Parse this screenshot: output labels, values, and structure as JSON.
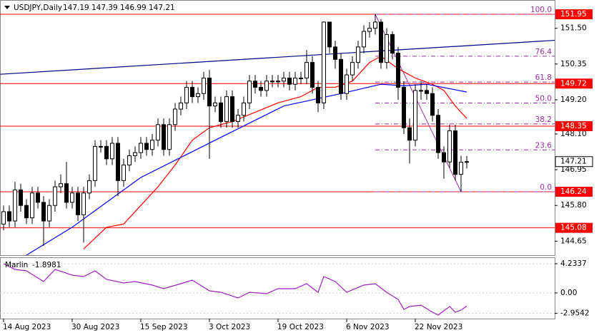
{
  "chart_data": [
    {
      "type": "candlestick",
      "symbol": "USDJPY,Daily",
      "categories": [
        "14 Aug 2023",
        null,
        null,
        null,
        null,
        null,
        null,
        null,
        null,
        null,
        null,
        null,
        "30 Aug 2023",
        null,
        null,
        null,
        null,
        null,
        null,
        null,
        null,
        null,
        null,
        null,
        "15 Sep 2023",
        null,
        null,
        null,
        null,
        null,
        null,
        null,
        null,
        null,
        null,
        null,
        "3 Oct 2023",
        null,
        null,
        null,
        null,
        null,
        null,
        null,
        null,
        null,
        null,
        null,
        "19 Oct 2023",
        null,
        null,
        null,
        null,
        null,
        null,
        null,
        null,
        null,
        null,
        null,
        "6 Nov 2023",
        null,
        null,
        null,
        null,
        null,
        null,
        null,
        null,
        null,
        null,
        null,
        "22 Nov 2023",
        null,
        null,
        null,
        null,
        null,
        null,
        null,
        null,
        null
      ],
      "open": [
        145.2,
        145.6,
        145.3,
        146.3,
        145.8,
        145.4,
        146.2,
        145.9,
        145.3,
        145.8,
        146.4,
        146.5,
        145.9,
        146.2,
        145.5,
        146.2,
        146.6,
        147.7,
        147.7,
        147.3,
        147.8,
        146.6,
        147.1,
        147.4,
        147.5,
        147.8,
        147.6,
        147.9,
        148.4,
        147.6,
        148.4,
        148.9,
        149.1,
        149.6,
        149.3,
        149.4,
        149.9,
        149.0,
        149.1,
        148.5,
        149.3,
        148.5,
        148.7,
        149.1,
        149.8,
        149.6,
        149.5,
        149.8,
        149.8,
        149.8,
        149.9,
        149.7,
        149.9,
        149.9,
        150.4,
        149.6,
        149.1,
        151.7,
        150.9,
        150.5,
        149.4,
        150.0,
        150.4,
        150.9,
        151.4,
        151.5,
        151.7,
        150.4,
        151.3,
        150.7,
        149.6,
        148.3,
        147.9,
        149.5,
        149.5,
        149.4,
        148.7,
        147.5,
        147.2,
        148.2,
        146.8,
        147.19
      ],
      "high": [
        145.8,
        145.8,
        146.56,
        146.5,
        146.0,
        146.4,
        146.4,
        146.1,
        146.0,
        146.6,
        146.8,
        147.2,
        146.4,
        146.4,
        146.4,
        146.8,
        147.9,
        147.9,
        147.9,
        148.0,
        148.0,
        147.3,
        147.6,
        147.7,
        148.0,
        148.0,
        148.1,
        148.6,
        148.6,
        148.6,
        149.1,
        149.3,
        149.8,
        149.8,
        149.6,
        150.1,
        150.16,
        149.3,
        149.3,
        149.5,
        149.5,
        148.9,
        149.3,
        150.0,
        150.0,
        149.8,
        150.0,
        150.0,
        150.0,
        150.1,
        150.1,
        150.1,
        150.1,
        150.8,
        150.6,
        149.8,
        151.72,
        151.7,
        151.1,
        150.7,
        150.2,
        150.6,
        151.1,
        151.6,
        151.7,
        151.95,
        151.8,
        151.5,
        151.4,
        150.9,
        149.8,
        148.6,
        149.7,
        149.8,
        149.7,
        149.6,
        148.9,
        147.7,
        148.4,
        148.4,
        147.4,
        147.39
      ],
      "low": [
        145.0,
        145.1,
        145.1,
        145.6,
        145.2,
        145.2,
        145.7,
        144.5,
        145.1,
        145.6,
        146.2,
        145.7,
        145.7,
        145.3,
        144.6,
        146.0,
        146.4,
        147.5,
        147.1,
        147.1,
        146.1,
        146.4,
        146.9,
        147.2,
        147.3,
        147.4,
        147.4,
        147.7,
        147.4,
        147.4,
        148.2,
        148.7,
        148.9,
        149.1,
        149.1,
        149.2,
        147.3,
        148.8,
        148.3,
        148.3,
        148.3,
        148.3,
        148.5,
        148.9,
        149.4,
        149.3,
        149.3,
        149.6,
        149.6,
        149.6,
        149.5,
        149.5,
        149.7,
        149.7,
        149.4,
        148.8,
        148.9,
        150.7,
        150.2,
        149.2,
        149.2,
        149.8,
        150.2,
        150.7,
        151.2,
        151.3,
        150.2,
        150.2,
        150.5,
        149.2,
        148.1,
        147.15,
        147.7,
        149.2,
        149.2,
        148.5,
        147.3,
        146.66,
        147.0,
        146.6,
        146.24,
        146.99
      ],
      "close": [
        145.6,
        145.3,
        146.3,
        145.8,
        145.4,
        146.2,
        145.9,
        145.3,
        145.8,
        146.4,
        146.5,
        145.9,
        146.2,
        145.5,
        146.2,
        146.6,
        147.7,
        147.7,
        147.3,
        147.8,
        146.6,
        147.1,
        147.4,
        147.5,
        147.8,
        147.6,
        147.9,
        148.4,
        147.6,
        148.4,
        148.9,
        149.1,
        149.6,
        149.3,
        149.4,
        149.9,
        149.0,
        149.1,
        148.5,
        149.3,
        148.5,
        148.7,
        149.1,
        149.8,
        149.6,
        149.5,
        149.8,
        149.8,
        149.8,
        149.9,
        149.7,
        149.9,
        149.9,
        150.4,
        149.6,
        149.1,
        151.7,
        150.9,
        150.5,
        149.4,
        150.0,
        150.4,
        150.9,
        151.4,
        151.5,
        151.7,
        150.4,
        151.3,
        150.7,
        149.6,
        148.3,
        147.9,
        149.5,
        149.5,
        149.4,
        148.7,
        147.5,
        147.2,
        148.2,
        146.8,
        147.19,
        147.21
      ],
      "up_color": "#ffffff",
      "down_color": "#000000",
      "ylim": [
        144.2,
        152.41
      ],
      "yticks": [
        {
          "value": 151.5,
          "label": "151.50"
        },
        150.35,
        {
          "value": 149.2,
          "label": "149.20"
        },
        {
          "value": 148.1,
          "label": "148.10"
        },
        146.95,
        {
          "value": 145.8,
          "label": "145.80"
        },
        144.65
      ],
      "series": [
        {
          "color": "#ff0000",
          "x": [
            14,
            18,
            21,
            24,
            27,
            30,
            33,
            36,
            40,
            44,
            48,
            52,
            55,
            58,
            61,
            64,
            66,
            69,
            72,
            75,
            77,
            79,
            81
          ],
          "values": [
            144.4,
            145.1,
            145.2,
            145.8,
            146.4,
            147.1,
            147.9,
            148.3,
            148.5,
            148.8,
            149.1,
            149.3,
            149.6,
            149.6,
            149.8,
            150.4,
            150.6,
            150.2,
            149.9,
            149.7,
            149.5,
            149.0,
            148.6
          ]
        },
        {
          "color": "#0000ff",
          "x": [
            4,
            12,
            24,
            37,
            49,
            59,
            66,
            70,
            74,
            81
          ],
          "values": [
            144.2,
            145.1,
            146.7,
            147.9,
            149.0,
            149.4,
            149.7,
            149.65,
            149.7,
            149.45
          ]
        },
        {
          "color": "#000080",
          "x": [
            -0.6,
            96.9
          ],
          "values": [
            150.02,
            151.12
          ]
        }
      ],
      "levels": [
        151.95,
        149.72,
        148.35,
        146.24,
        145.08
      ],
      "level_color": "#ff0000",
      "fibonacci": {
        "high": 151.95,
        "low": 146.24,
        "color": "#9b2fa0",
        "levels": [
          {
            "value": 100,
            "label": "100.0"
          },
          {
            "value": 76.4,
            "label": "76.4"
          },
          {
            "value": 61.8,
            "label": "61.8"
          },
          {
            "value": 50,
            "label": "50.0"
          },
          {
            "value": 38.2,
            "label": "38.2"
          },
          {
            "value": 23.6,
            "label": "23.6"
          },
          {
            "value": 0,
            "label": "0.0"
          }
        ]
      }
    },
    {
      "type": "line",
      "name": "Marlin",
      "color": "#a020c0",
      "x": [
        0,
        2,
        4,
        7,
        9,
        12,
        14,
        16,
        18,
        21,
        23,
        26,
        28,
        31,
        33,
        36,
        38,
        41,
        43,
        46,
        48,
        51,
        53,
        55,
        56,
        58,
        60,
        63,
        65,
        67,
        69,
        70,
        71,
        73,
        75,
        76,
        77,
        78,
        79,
        80,
        81
      ],
      "values": [
        4.23,
        3.41,
        3.2,
        1.65,
        3.41,
        2.58,
        2.38,
        3.2,
        1.96,
        1.45,
        1.65,
        1.14,
        0.62,
        1.34,
        1.86,
        0.31,
        0.1,
        -0.72,
        0.1,
        -0.1,
        0.62,
        0.62,
        1.34,
        0.1,
        2.38,
        1.65,
        0.1,
        1.14,
        1.34,
        0.1,
        -0.93,
        -2.38,
        -1.96,
        -1.76,
        -2.79,
        -3.2,
        -2.58,
        -1.96,
        -2.79,
        -2.48,
        -1.8981
      ],
      "ylim": [
        -3.51,
        4.96
      ],
      "yticks": [
        4.2337,
        {
          "value": 0,
          "label": "0.00"
        },
        -2.9542
      ]
    }
  ]
}
